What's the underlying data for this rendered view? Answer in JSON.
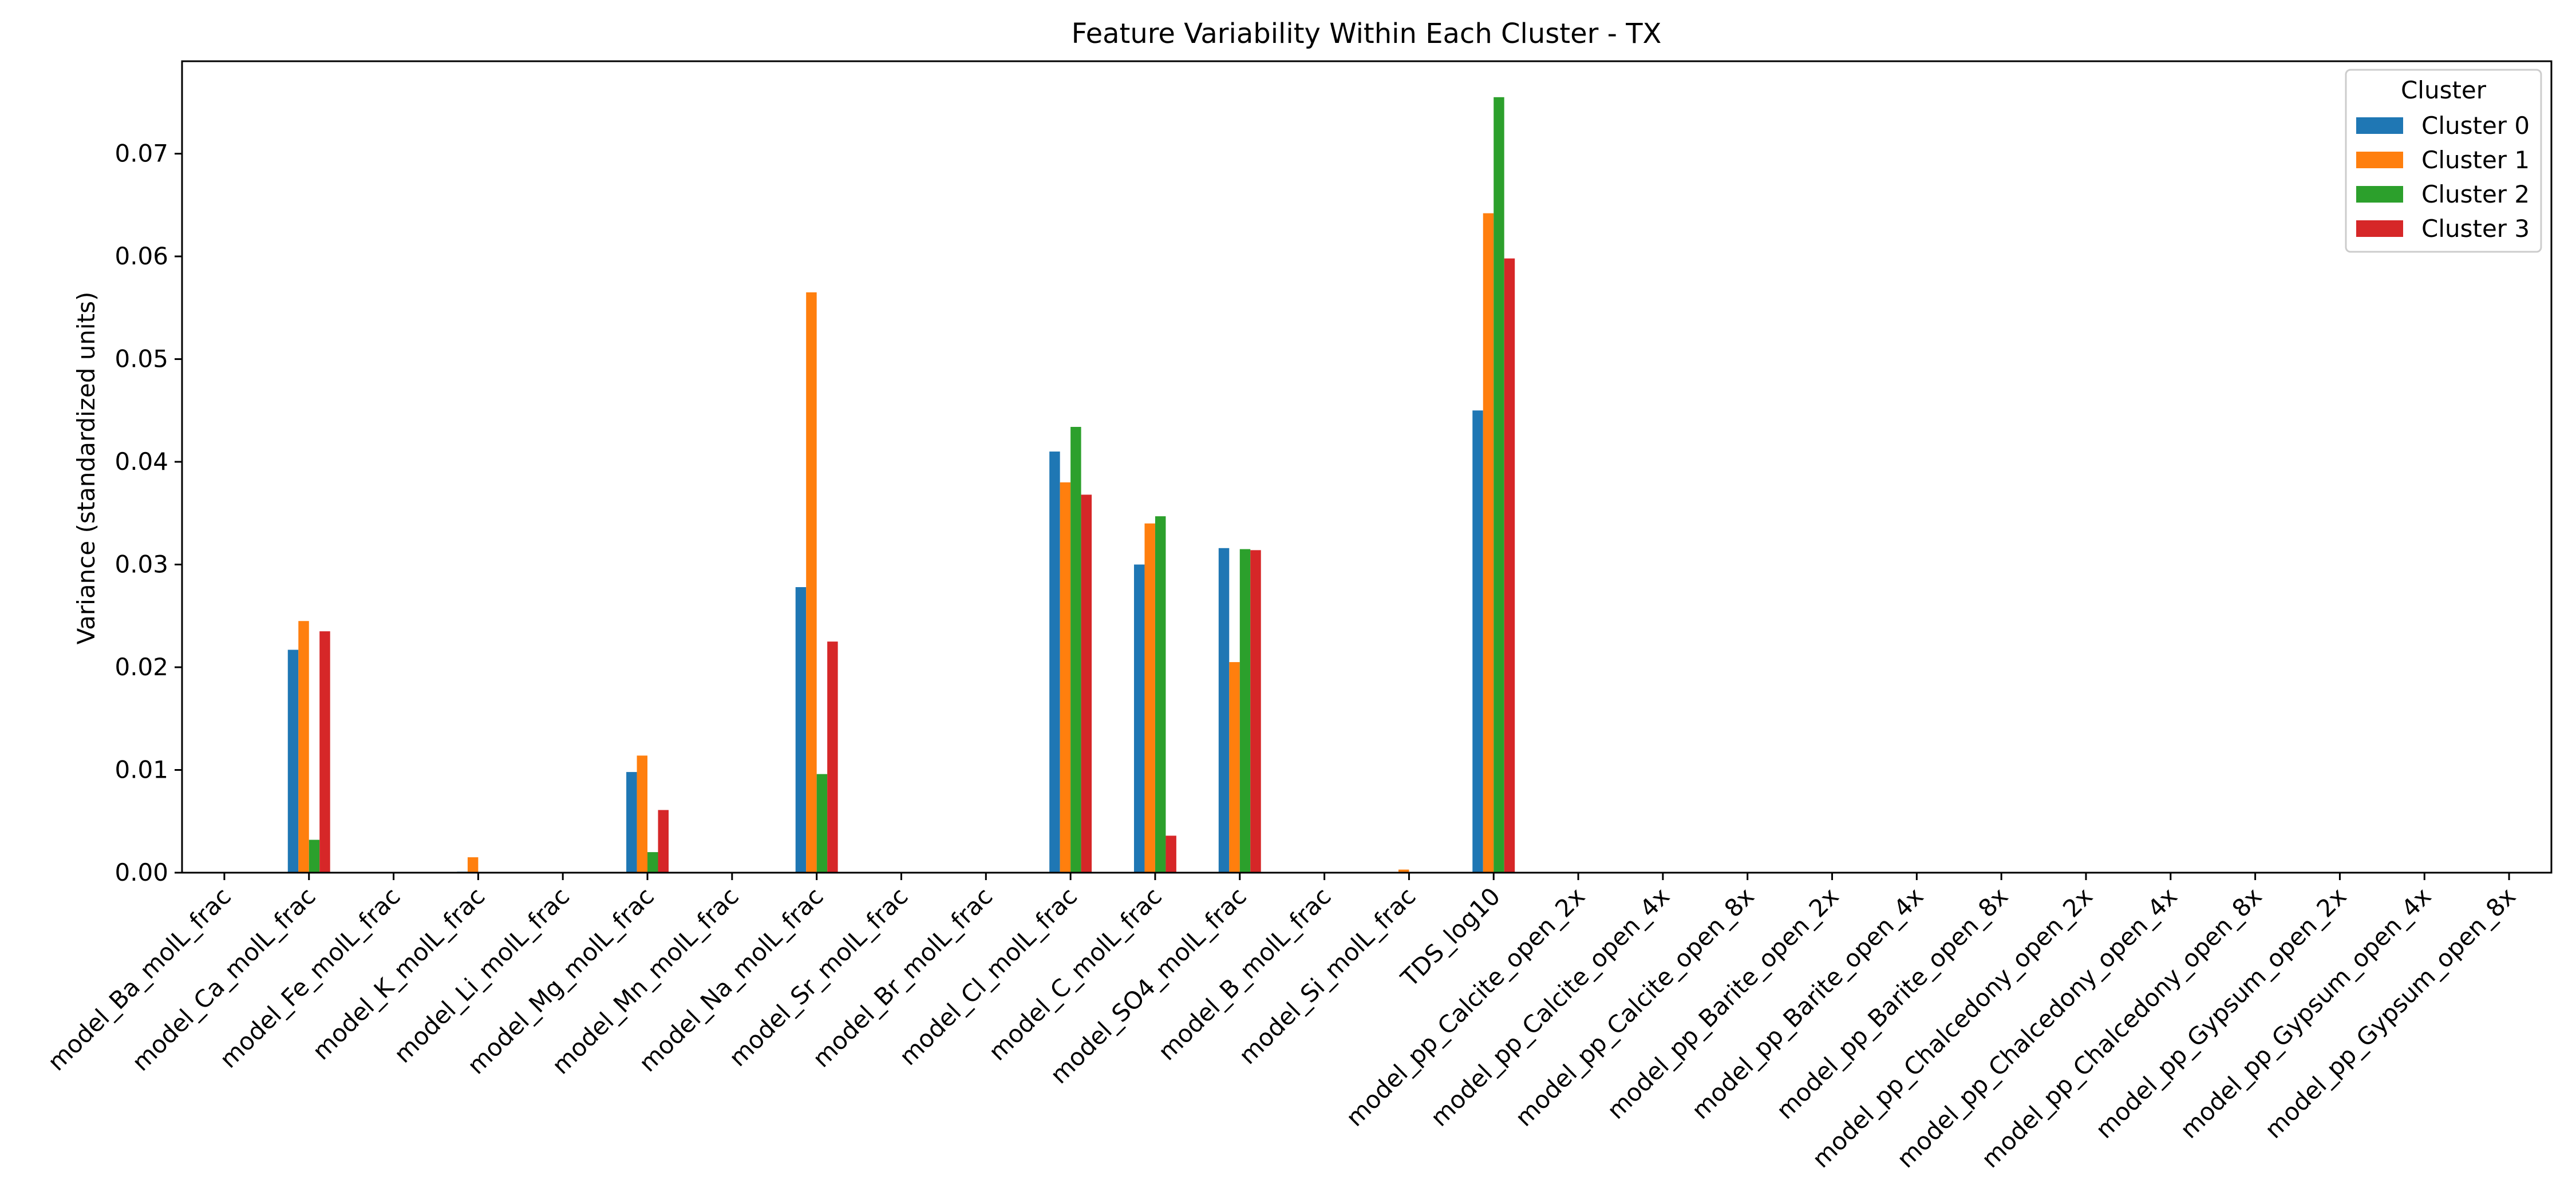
{
  "chart_data": {
    "type": "bar",
    "title": "Feature Variability Within Each Cluster - TX",
    "xlabel": "",
    "ylabel": "Variance (standardized units)",
    "ylim": [
      0,
      0.079
    ],
    "yticks": [
      0.0,
      0.01,
      0.02,
      0.03,
      0.04,
      0.05,
      0.06,
      0.07
    ],
    "ytick_labels": [
      "0.00",
      "0.01",
      "0.02",
      "0.03",
      "0.04",
      "0.05",
      "0.06",
      "0.07"
    ],
    "grid": false,
    "legend": {
      "title": "Cluster",
      "placement": "top-right"
    },
    "categories": [
      "model_Ba_molL_frac",
      "model_Ca_molL_frac",
      "model_Fe_molL_frac",
      "model_K_molL_frac",
      "model_Li_molL_frac",
      "model_Mg_molL_frac",
      "model_Mn_molL_frac",
      "model_Na_molL_frac",
      "model_Sr_molL_frac",
      "model_Br_molL_frac",
      "model_Cl_molL_frac",
      "model_C_molL_frac",
      "model_SO4_molL_frac",
      "model_B_molL_frac",
      "model_Si_molL_frac",
      "TDS_log10",
      "model_pp_Calcite_open_2x",
      "model_pp_Calcite_open_4x",
      "model_pp_Calcite_open_8x",
      "model_pp_Barite_open_2x",
      "model_pp_Barite_open_4x",
      "model_pp_Barite_open_8x",
      "model_pp_Chalcedony_open_2x",
      "model_pp_Chalcedony_open_4x",
      "model_pp_Chalcedony_open_8x",
      "model_pp_Gypsum_open_2x",
      "model_pp_Gypsum_open_4x",
      "model_pp_Gypsum_open_8x"
    ],
    "series": [
      {
        "name": "Cluster 0",
        "color": "#1f77b4",
        "values": [
          0,
          0.0217,
          0,
          0.0001,
          0,
          0.0098,
          0,
          0.0278,
          0,
          0,
          0.041,
          0.03,
          0.0316,
          0,
          0,
          0.045,
          0,
          0,
          0,
          0,
          0,
          0,
          0,
          0,
          0,
          0,
          0,
          0
        ]
      },
      {
        "name": "Cluster 1",
        "color": "#ff7f0e",
        "values": [
          0,
          0.0245,
          0,
          0.0015,
          0,
          0.0114,
          0,
          0.0565,
          0,
          0,
          0.038,
          0.034,
          0.0205,
          0,
          0.0003,
          0.0642,
          0,
          0,
          0,
          0,
          0,
          0,
          0,
          0,
          0,
          0,
          0,
          0
        ]
      },
      {
        "name": "Cluster 2",
        "color": "#2ca02c",
        "values": [
          0,
          0.0032,
          0,
          0,
          0,
          0.002,
          0,
          0.0096,
          0,
          0,
          0.0434,
          0.0347,
          0.0315,
          0,
          0,
          0.0755,
          0,
          0,
          0,
          0,
          0,
          0,
          0,
          0,
          0,
          0,
          0,
          0
        ]
      },
      {
        "name": "Cluster 3",
        "color": "#d62728",
        "values": [
          0,
          0.0235,
          0,
          0,
          0,
          0.0061,
          0,
          0.0225,
          0,
          0,
          0.0368,
          0.0036,
          0.0314,
          0,
          0,
          0.0598,
          0,
          0,
          0,
          0,
          0,
          0,
          0,
          0,
          0,
          0,
          0,
          0
        ]
      }
    ]
  }
}
